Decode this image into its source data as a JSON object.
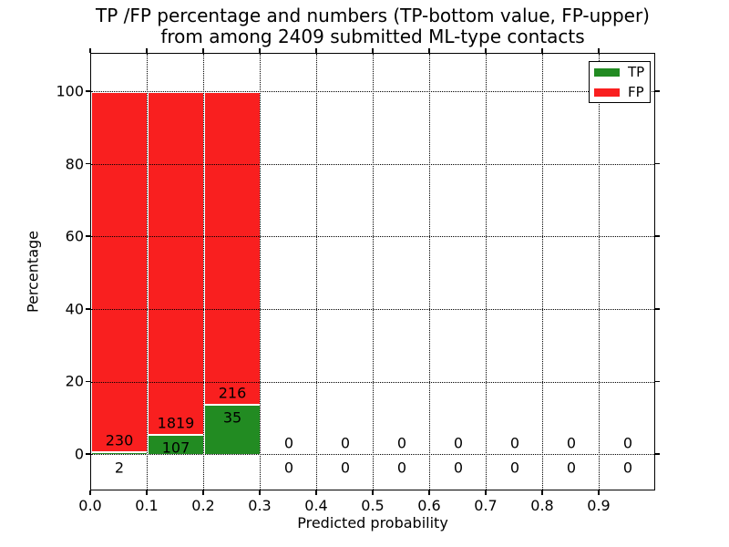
{
  "title": {
    "line1": "TP /FP percentage and numbers (TP-bottom value, FP-upper)",
    "line2": "from among 2409 submitted ML-type contacts"
  },
  "x_axis": {
    "label": "Predicted probability",
    "ticks": [
      "0.0",
      "0.1",
      "0.2",
      "0.3",
      "0.4",
      "0.5",
      "0.6",
      "0.7",
      "0.8",
      "0.9"
    ]
  },
  "y_axis": {
    "label": "Percentage",
    "ticks": [
      "0",
      "20",
      "40",
      "60",
      "80",
      "100"
    ]
  },
  "legend": {
    "items": [
      {
        "label": "TP",
        "color": "#228b22"
      },
      {
        "label": "FP",
        "color": "#f91f1f"
      }
    ]
  },
  "colors": {
    "tp": "#228b22",
    "fp": "#f91f1f",
    "grid": "#000000",
    "spine": "#000000"
  },
  "chart_data": {
    "type": "bar",
    "stacked": true,
    "title": "TP /FP percentage and numbers (TP-bottom value, FP-upper) from among 2409 submitted ML-type contacts",
    "xlabel": "Predicted probability",
    "ylabel": "Percentage",
    "xlim": [
      0.0,
      1.0
    ],
    "ylim": [
      -10,
      110
    ],
    "grid": true,
    "grid_style": "dotted",
    "legend_position": "upper right",
    "total_contacts": 2409,
    "y_ticks": [
      0,
      20,
      40,
      60,
      80,
      100
    ],
    "x_ticks": [
      0.0,
      0.1,
      0.2,
      0.3,
      0.4,
      0.5,
      0.6,
      0.7,
      0.8,
      0.9
    ],
    "series": [
      {
        "name": "TP",
        "color": "#228b22",
        "position": "bottom"
      },
      {
        "name": "FP",
        "color": "#f91f1f",
        "position": "top"
      }
    ],
    "bins": [
      {
        "range": [
          0.0,
          0.1
        ],
        "tp": 2,
        "fp": 230
      },
      {
        "range": [
          0.1,
          0.2
        ],
        "tp": 107,
        "fp": 1819
      },
      {
        "range": [
          0.2,
          0.3
        ],
        "tp": 35,
        "fp": 216
      },
      {
        "range": [
          0.3,
          0.4
        ],
        "tp": 0,
        "fp": 0
      },
      {
        "range": [
          0.4,
          0.5
        ],
        "tp": 0,
        "fp": 0
      },
      {
        "range": [
          0.5,
          0.6
        ],
        "tp": 0,
        "fp": 0
      },
      {
        "range": [
          0.6,
          0.7
        ],
        "tp": 0,
        "fp": 0
      },
      {
        "range": [
          0.7,
          0.8
        ],
        "tp": 0,
        "fp": 0
      },
      {
        "range": [
          0.8,
          0.9
        ],
        "tp": 0,
        "fp": 0
      },
      {
        "range": [
          0.9,
          1.0
        ],
        "tp": 0,
        "fp": 0
      }
    ]
  }
}
